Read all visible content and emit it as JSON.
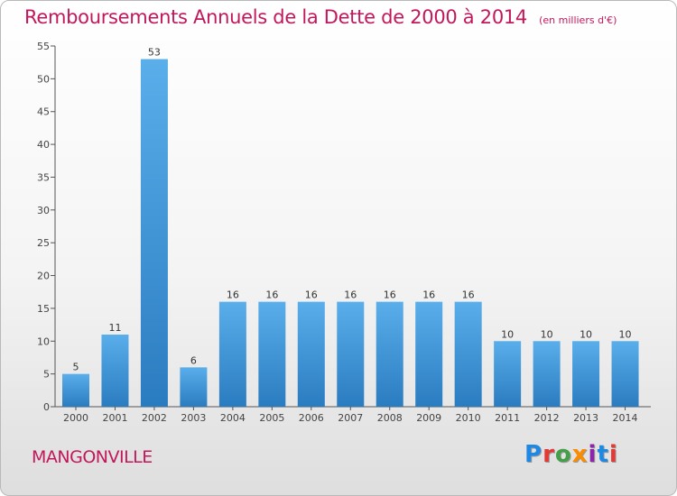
{
  "header": {
    "title": "Remboursements Annuels de la Dette de 2000 à 2014",
    "subtitle": "(en milliers d'€)"
  },
  "footer": {
    "place": "MANGONVILLE",
    "logo": "Proxiti"
  },
  "colors": {
    "bar_top": "#5aaeea",
    "bar_bottom": "#2a7cc0",
    "title": "#c2185b",
    "logo": [
      "#1e88e5",
      "#e53935",
      "#43a047",
      "#fb8c00",
      "#8e24aa",
      "#1e88e5",
      "#e53935"
    ]
  },
  "chart_data": {
    "type": "bar",
    "title": "Remboursements Annuels de la Dette de 2000 à 2014",
    "xlabel": "",
    "ylabel": "",
    "categories": [
      "2000",
      "2001",
      "2002",
      "2003",
      "2004",
      "2005",
      "2006",
      "2007",
      "2008",
      "2009",
      "2010",
      "2011",
      "2012",
      "2013",
      "2014"
    ],
    "values": [
      5,
      11,
      53,
      6,
      16,
      16,
      16,
      16,
      16,
      16,
      16,
      10,
      10,
      10,
      10
    ],
    "ylim": [
      0,
      55
    ],
    "yticks": [
      0,
      5,
      10,
      15,
      20,
      25,
      30,
      35,
      40,
      45,
      50,
      55
    ],
    "grid": false,
    "data_labels": true
  }
}
